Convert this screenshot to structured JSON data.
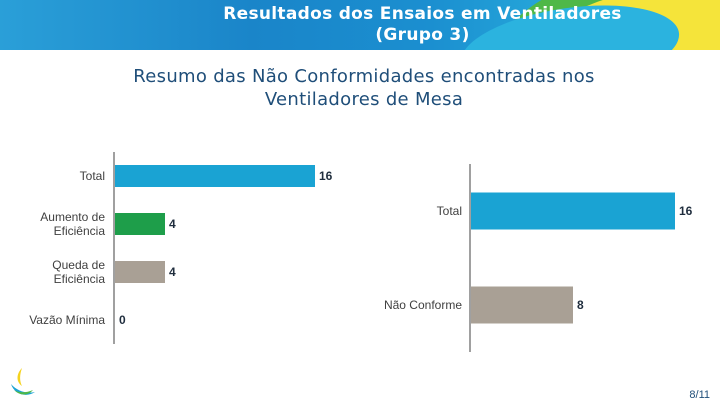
{
  "header": {
    "title_line1": "Resultados dos Ensaios em Ventiladores",
    "title_line2": "(Grupo 3)"
  },
  "subtitle": {
    "line1": "Resumo das Não Conformidades encontradas nos",
    "line2": "Ventiladores de Mesa"
  },
  "colors": {
    "teal": "#1aa3d3",
    "green": "#1e9e4a",
    "grey": "#a9a095",
    "axis": "#404040"
  },
  "chart_data": [
    {
      "type": "bar",
      "orientation": "horizontal",
      "categories": [
        "Total",
        "Aumento de Eficiência",
        "Queda de Eficiência",
        "Vazão Mínima"
      ],
      "category_lines": [
        [
          "Total"
        ],
        [
          "Aumento de",
          "Eficiência"
        ],
        [
          "Queda de",
          "Eficiência"
        ],
        [
          "Vazão Mínima"
        ]
      ],
      "values": [
        16,
        4,
        4,
        0
      ],
      "bar_colors": [
        "#1aa3d3",
        "#1e9e4a",
        "#a9a095",
        "#a9a095"
      ],
      "xlim": [
        0,
        16
      ]
    },
    {
      "type": "bar",
      "orientation": "horizontal",
      "categories": [
        "Total",
        "Não Conforme"
      ],
      "category_lines": [
        [
          "Total"
        ],
        [
          "Não Conforme"
        ]
      ],
      "values": [
        16,
        8
      ],
      "bar_colors": [
        "#1aa3d3",
        "#a9a095"
      ],
      "xlim": [
        0,
        16
      ]
    }
  ],
  "footer": {
    "page": "8/11",
    "logo_icon": "leaf-logo-icon"
  }
}
